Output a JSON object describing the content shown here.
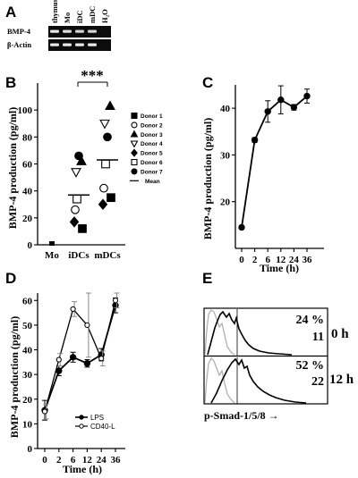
{
  "panels": {
    "A": {
      "letter": "A",
      "lanes": [
        "thymus",
        "Mo",
        "iDC",
        "mDC",
        "H₂O"
      ],
      "rows": [
        "BMP-4",
        "β-Actin"
      ],
      "band_intensity": {
        "BMP-4": [
          1,
          0.95,
          0.9,
          0.9,
          0
        ],
        "β-Actin": [
          1,
          1,
          1,
          1,
          0
        ]
      }
    },
    "B": {
      "letter": "B"
    },
    "C": {
      "letter": "C"
    },
    "D": {
      "letter": "D"
    },
    "E": {
      "letter": "E",
      "xlabel": "p-Smad-1/5/8 →",
      "rows": [
        {
          "percent": "24 %",
          "mfi": "11",
          "time": "0 h"
        },
        {
          "percent": "52 %",
          "mfi": "22",
          "time": "12 h"
        }
      ]
    }
  },
  "chart_data": [
    {
      "type": "scatter",
      "panel": "B",
      "ylabel": "BMP-4 production (pg/ml)",
      "ylim": [
        0,
        120
      ],
      "yticks": [
        0,
        20,
        40,
        60,
        80,
        100
      ],
      "categories": [
        "Mo",
        "iDCs",
        "mDCs"
      ],
      "significance": "***",
      "legend_position": "right",
      "series": [
        {
          "name": "Donor 1",
          "marker": "square-filled",
          "values": [
            1,
            12,
            35
          ]
        },
        {
          "name": "Donor 2",
          "marker": "circle-open",
          "values": [
            1,
            26,
            42
          ]
        },
        {
          "name": "Donor 3",
          "marker": "triangle-up-filled",
          "values": [
            1,
            62,
            103
          ]
        },
        {
          "name": "Donor 4",
          "marker": "triangle-down-open",
          "values": [
            1,
            54,
            90
          ]
        },
        {
          "name": "Donor 5",
          "marker": "diamond-filled",
          "values": [
            1,
            17,
            30
          ]
        },
        {
          "name": "Donor 6",
          "marker": "square-open",
          "values": [
            1,
            34,
            60
          ]
        },
        {
          "name": "Donor 7",
          "marker": "circle-filled",
          "values": [
            1,
            66,
            80
          ]
        }
      ],
      "mean": {
        "name": "Mean",
        "values": [
          1,
          37,
          63
        ]
      }
    },
    {
      "type": "line",
      "panel": "C",
      "ylabel": "BMP-4 production (pg/ml)",
      "xlabel": "Time (h)",
      "ylim": [
        10,
        45
      ],
      "yticks": [
        20,
        30,
        40
      ],
      "xticks": [
        "0",
        "2",
        "6",
        "12",
        "24",
        "36"
      ],
      "series": [
        {
          "values": [
            14.5,
            33.2,
            39.3,
            41.8,
            40.2,
            42.6
          ],
          "err": [
            0.3,
            0.5,
            2.3,
            3.0,
            0.6,
            1.5
          ]
        }
      ]
    },
    {
      "type": "line",
      "panel": "D",
      "ylabel": "BMP-4 production (pg/ml)",
      "xlabel": "Time (h)",
      "ylim": [
        0,
        63
      ],
      "yticks": [
        0,
        10,
        20,
        30,
        40,
        50,
        60
      ],
      "xticks": [
        "0",
        "2",
        "6",
        "12",
        "24",
        "36"
      ],
      "legend_position": "bottom-right",
      "series": [
        {
          "name": "LPS",
          "marker": "filled",
          "values": [
            15.5,
            31.5,
            37.0,
            34.5,
            38.0,
            58.0
          ],
          "err": [
            4.0,
            2.0,
            2.0,
            1.5,
            2.5,
            3.0
          ]
        },
        {
          "name": "CD40-L",
          "marker": "open",
          "values": [
            15.0,
            36.0,
            56.5,
            50.0,
            36.5,
            60.0
          ],
          "err": [
            3.0,
            2.5,
            3.0,
            13.0,
            3.0,
            3.0
          ]
        }
      ]
    }
  ]
}
